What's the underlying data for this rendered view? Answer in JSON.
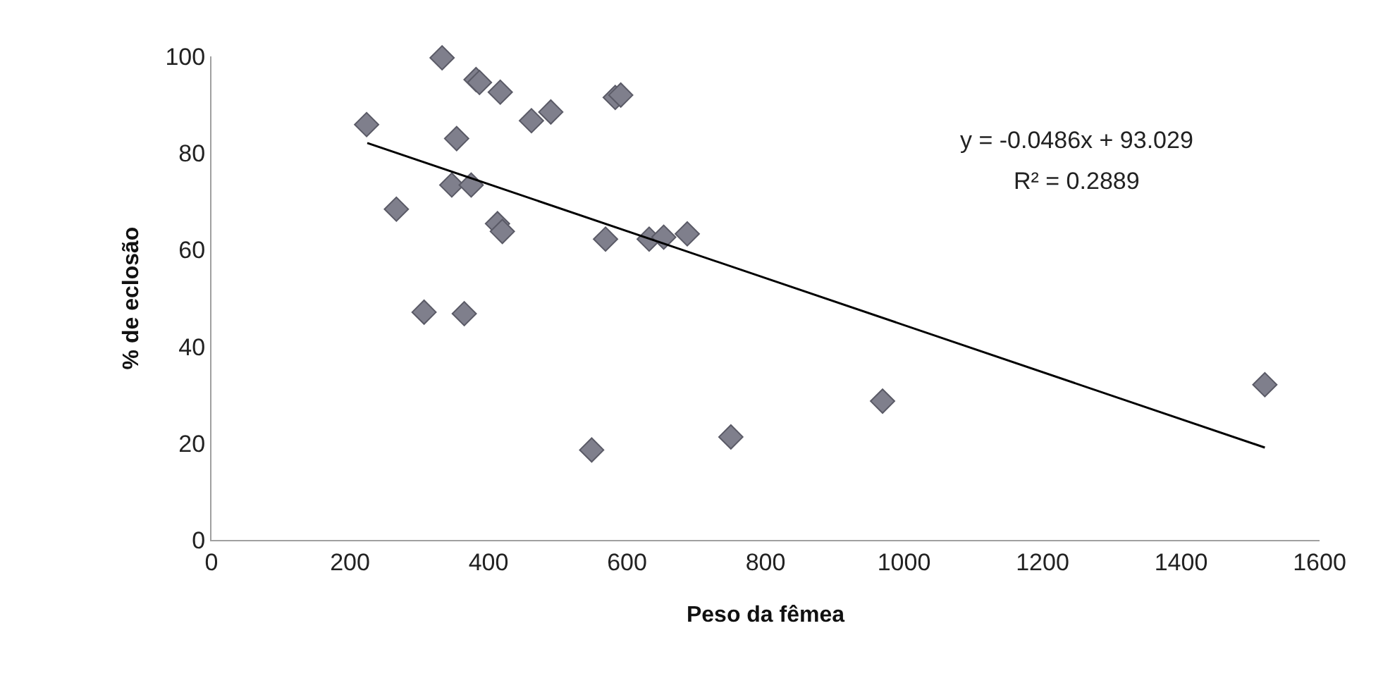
{
  "chart_data": {
    "type": "scatter",
    "xlabel": "Peso da fêmea",
    "ylabel": "% de eclosão",
    "xlim": [
      0,
      1600
    ],
    "xticks": [
      0,
      200,
      400,
      600,
      800,
      1000,
      1200,
      1400,
      1600
    ],
    "ylim": [
      0,
      100
    ],
    "yticks": [
      0,
      20,
      40,
      60,
      80,
      100
    ],
    "marker": "diamond",
    "series": [
      {
        "color": "#7f7f8c",
        "x": [
          224,
          333,
          382,
          387,
          417,
          462,
          490,
          583,
          591,
          354,
          347,
          375,
          267,
          413,
          420,
          569,
          632,
          653,
          687,
          307,
          365,
          549,
          750,
          969,
          1521
        ],
        "values": [
          85.9,
          99.7,
          95.2,
          94.6,
          92.6,
          86.7,
          88.5,
          91.5,
          92,
          83,
          73.4,
          73.4,
          68.4,
          65.4,
          63.8,
          62.2,
          62.2,
          62.6,
          63.3,
          47.1,
          46.8,
          18.6,
          21.3,
          28.7,
          32.1
        ]
      },
      {
        "type": "line",
        "color": "#000000",
        "marker": "none",
        "x": [
          225,
          1521
        ],
        "values": [
          82.1,
          19.1
        ]
      }
    ],
    "annotations": [
      "y = -0.0486x + 93.029",
      "R² = 0.2889"
    ]
  }
}
